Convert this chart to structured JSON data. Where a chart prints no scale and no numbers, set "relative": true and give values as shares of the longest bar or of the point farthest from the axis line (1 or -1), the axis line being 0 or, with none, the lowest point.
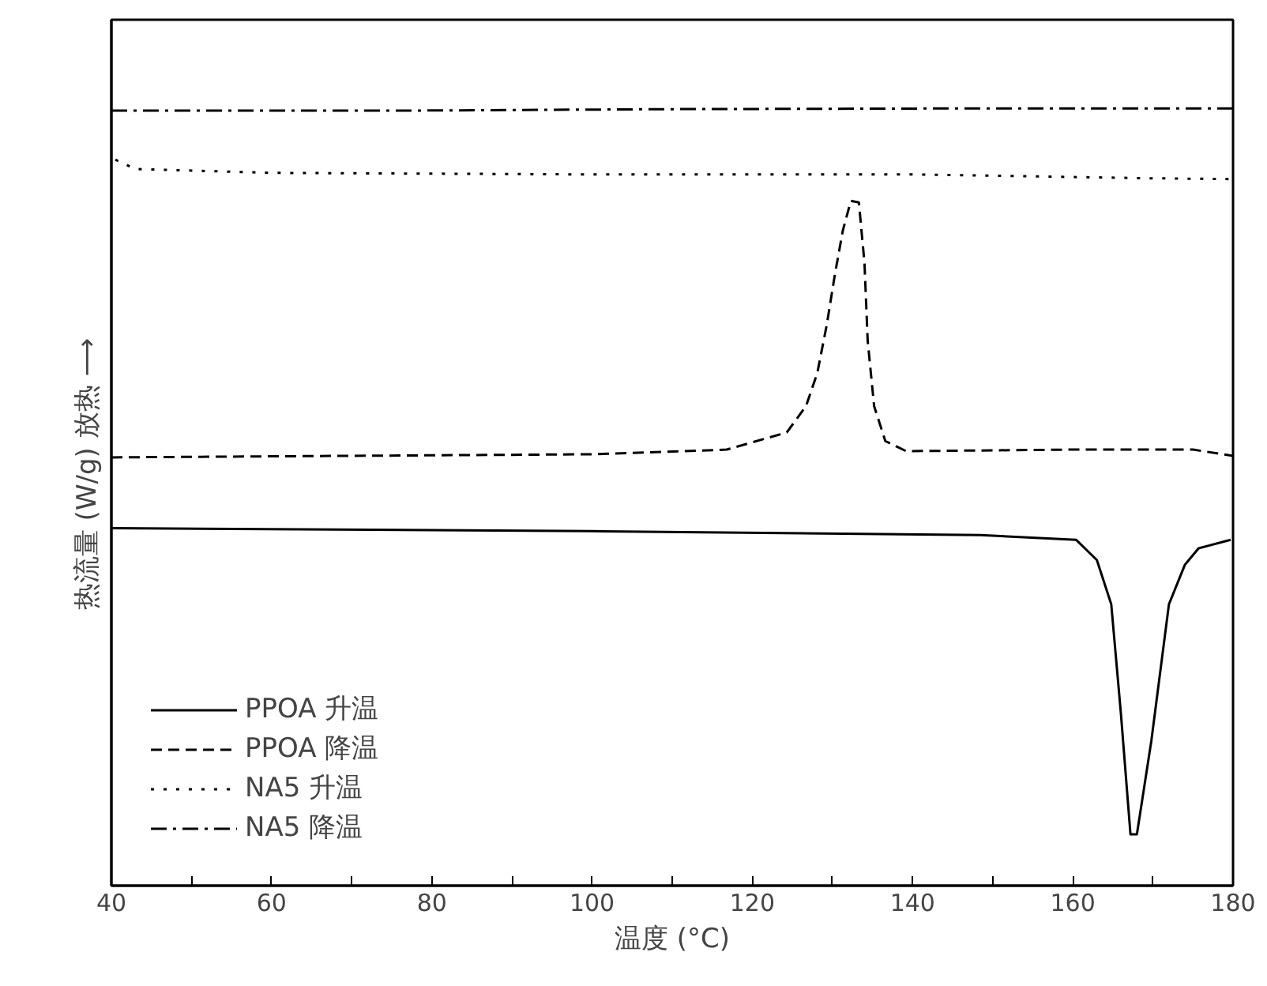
{
  "chart_data": {
    "type": "line",
    "relative": true,
    "xlabel": "温度 (°C)",
    "ylabel": "热流量 (W/g)      放热 ⟶",
    "xlim": [
      40,
      180
    ],
    "xticks": [
      40,
      {
        "value": 50,
        "label": null
      },
      60,
      {
        "value": 70,
        "label": null
      },
      80,
      {
        "value": 90,
        "label": null
      },
      100,
      {
        "value": 110,
        "label": null
      },
      120,
      {
        "value": 130,
        "label": null
      },
      140,
      {
        "value": 150,
        "label": null
      },
      160,
      {
        "value": 170,
        "label": null
      },
      180
    ],
    "grid": false,
    "legend": "bottom left",
    "marker": "none",
    "series": [
      {
        "name": "PPOA 升温",
        "color": "#000000",
        "line_style": "solid",
        "x": [
          40,
          100,
          148.5,
          160.4,
          163.0,
          164.8,
          166.0,
          167.2,
          168.0,
          169.8,
          172.0,
          174.0,
          175.7,
          179.7
        ],
        "values": [
          0.46,
          0.456,
          0.451,
          0.445,
          0.419,
          0.362,
          0.222,
          0.066,
          0.066,
          0.186,
          0.362,
          0.413,
          0.434,
          0.445
        ]
      },
      {
        "name": "PPOA 降温",
        "color": "#000000",
        "line_style": "dashed",
        "x": [
          40,
          100,
          116.8,
          124.3,
          126.7,
          128.1,
          129.3,
          130.3,
          131.3,
          132.3,
          133.3,
          134.0,
          134.4,
          135.2,
          136.6,
          139.2,
          160,
          175,
          180
        ],
        "values": [
          0.551,
          0.555,
          0.561,
          0.583,
          0.617,
          0.659,
          0.722,
          0.786,
          0.843,
          0.881,
          0.879,
          0.801,
          0.701,
          0.617,
          0.572,
          0.559,
          0.561,
          0.561,
          0.553
        ]
      },
      {
        "name": "NA5 升温",
        "color": "#000000",
        "line_style": "dotted",
        "x": [
          40.5,
          43,
          60,
          100,
          140,
          170,
          180
        ],
        "values": [
          0.934,
          0.922,
          0.917,
          0.915,
          0.915,
          0.91,
          0.909
        ]
      },
      {
        "name": "NA5 降温",
        "color": "#000000",
        "line_style": "dashdot",
        "x": [
          40,
          75,
          110,
          150,
          180
        ],
        "values": [
          0.997,
          0.997,
          0.999,
          1.0,
          1.0
        ]
      }
    ]
  }
}
